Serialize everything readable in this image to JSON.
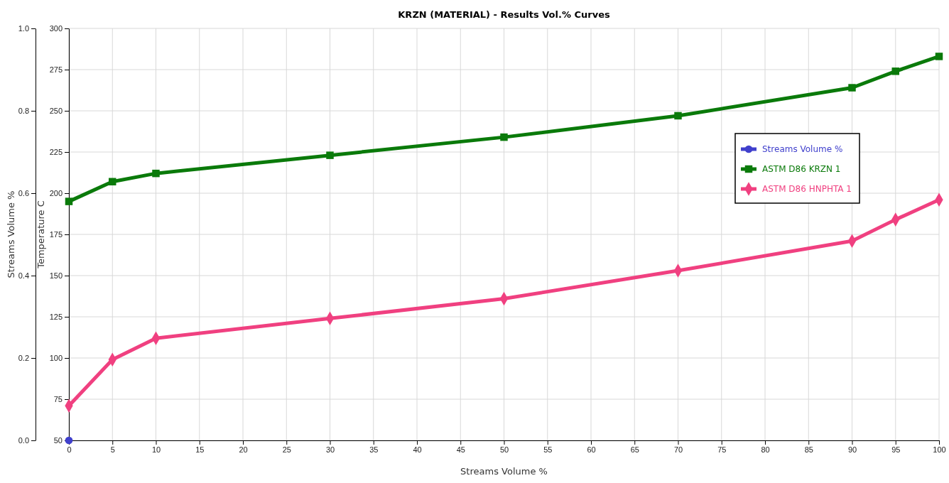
{
  "chart_data": {
    "type": "line",
    "title": "KRZN (MATERIAL) - Results Vol.% Curves",
    "xlabel": "Streams Volume %",
    "ylabel": "Temperature C",
    "y2label": "Streams Volume %",
    "xlim": [
      0,
      100
    ],
    "xticks": [
      0,
      5,
      10,
      15,
      20,
      25,
      30,
      35,
      40,
      45,
      50,
      55,
      60,
      65,
      70,
      75,
      80,
      85,
      90,
      95,
      100
    ],
    "ylim": [
      50,
      300
    ],
    "yticks": [
      50,
      75,
      100,
      125,
      150,
      175,
      200,
      225,
      250,
      275,
      300
    ],
    "y2lim": [
      0,
      1
    ],
    "y2ticks": [
      {
        "value": 0,
        "label": "0.0"
      },
      {
        "value": 0.2,
        "label": "0.2"
      },
      {
        "value": 0.4,
        "label": "0.4"
      },
      {
        "value": 0.6,
        "label": "0.6"
      },
      {
        "value": 0.8,
        "label": "0.8"
      },
      {
        "value": 1,
        "label": "1.0"
      }
    ],
    "grid": true,
    "legend": "right",
    "line_style": "solid",
    "series": [
      {
        "name": "Streams Volume %",
        "color": "#4040cc",
        "axis": "y2",
        "marker": "circle",
        "x": [
          0
        ],
        "values": [
          0
        ]
      },
      {
        "name": "ASTM D86 KRZN 1",
        "color": "#0a7a0a",
        "marker": "square",
        "x": [
          0,
          5,
          10,
          30,
          50,
          70,
          90,
          95,
          100
        ],
        "values": [
          195,
          207,
          212,
          223,
          234,
          247,
          264,
          274,
          283
        ]
      },
      {
        "name": "ASTM D86 HNPHTA 1",
        "color": "#f04080",
        "marker": "diamond",
        "x": [
          0,
          5,
          10,
          30,
          50,
          70,
          90,
          95,
          100
        ],
        "values": [
          71,
          99,
          112,
          124,
          136,
          153,
          171,
          184,
          196
        ]
      }
    ]
  }
}
